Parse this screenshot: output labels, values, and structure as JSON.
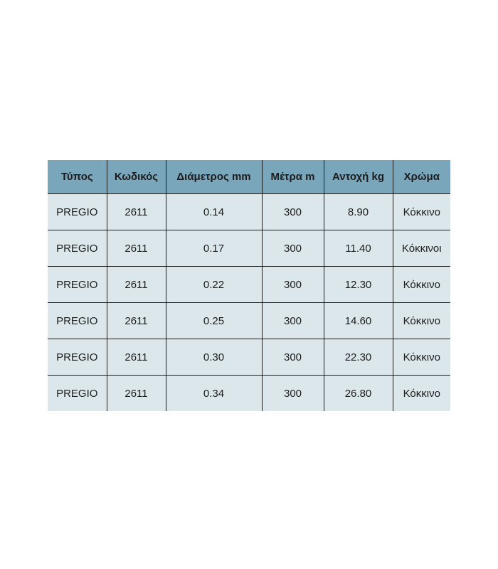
{
  "chart_data": {
    "type": "table",
    "columns": [
      "Τύπος",
      "Κωδικός",
      "Διάμετρος mm",
      "Μέτρα m",
      "Αντοχή kg",
      "Χρώμα"
    ],
    "rows": [
      [
        "PREGIO",
        "2611",
        "0.14",
        "300",
        "8.90",
        "Κόκκινο"
      ],
      [
        "PREGIO",
        "2611",
        "0.17",
        "300",
        "11.40",
        "Κόκκινοι"
      ],
      [
        "PREGIO",
        "2611",
        "0.22",
        "300",
        "12.30",
        "Κόκκινο"
      ],
      [
        "PREGIO",
        "2611",
        "0.25",
        "300",
        "14.60",
        "Κόκκινο"
      ],
      [
        "PREGIO",
        "2611",
        "0.30",
        "300",
        "22.30",
        "Κόκκινο"
      ],
      [
        "PREGIO",
        "2611",
        "0.34",
        "300",
        "26.80",
        "Κόκκινο"
      ]
    ]
  },
  "colors": {
    "header_bg": "#7aa6bc",
    "row_bg": "#dce7eb",
    "border": "#1a1a1a",
    "text": "#1c1c1c",
    "page_bg": "#ffffff"
  }
}
